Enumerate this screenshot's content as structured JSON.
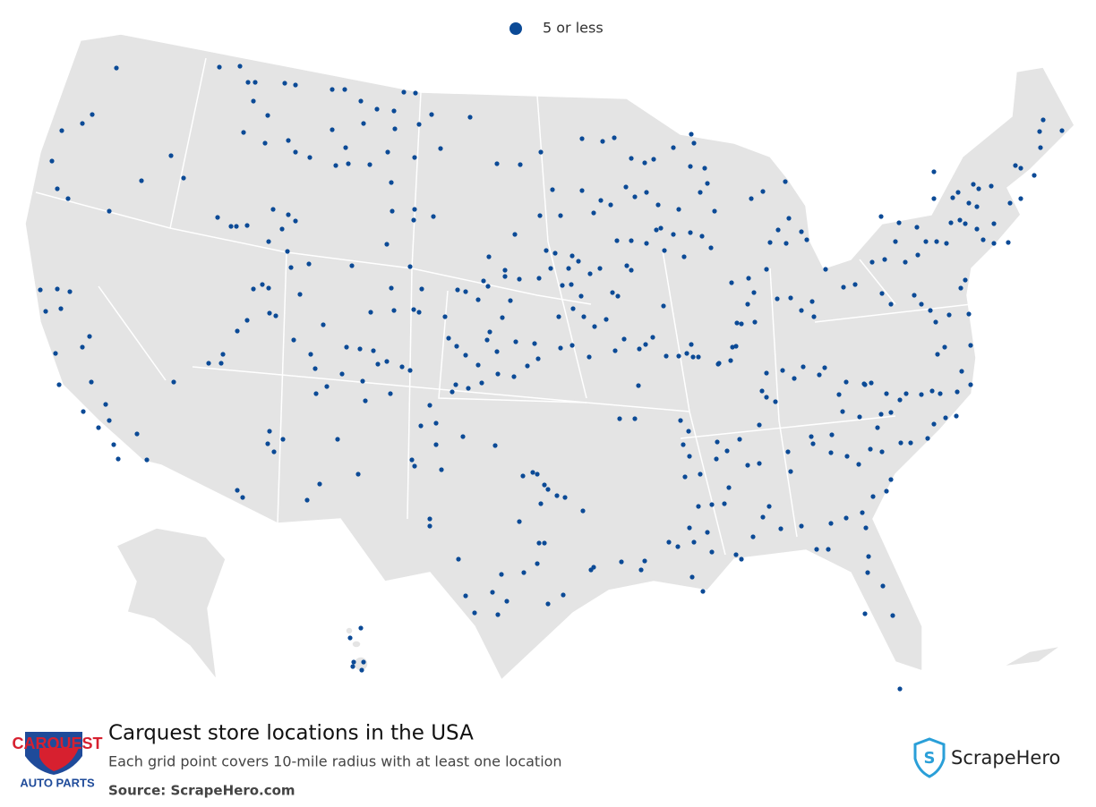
{
  "legend": {
    "label": "5 or less"
  },
  "footer": {
    "title": "Carquest store locations in the USA",
    "subtitle": "Each grid point covers 10-mile radius with at least one location",
    "source": "Source: ScrapeHero.com",
    "logo": {
      "name": "CARQUEST",
      "tagline": "AUTO PARTS"
    },
    "brand": "ScrapeHero"
  }
}
